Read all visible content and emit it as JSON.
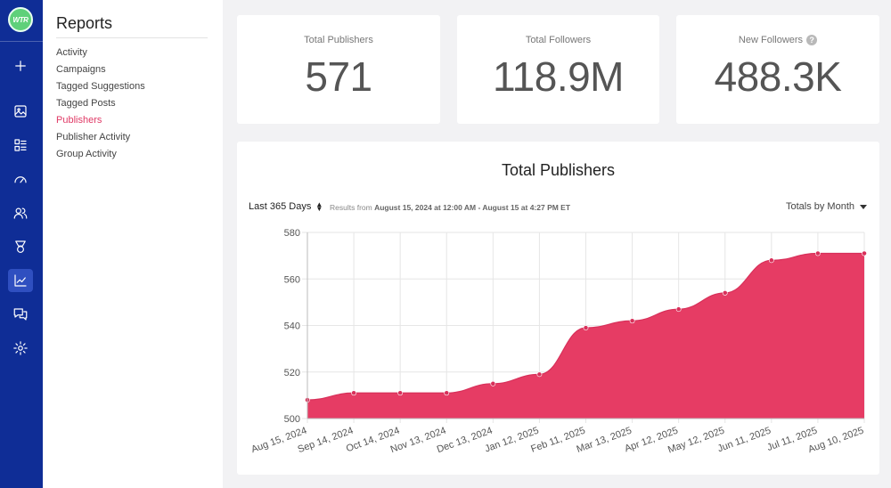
{
  "app": {
    "logo_text": "WTR"
  },
  "rail": {
    "items": [
      {
        "icon": "plus-icon"
      },
      {
        "icon": "image-icon"
      },
      {
        "icon": "layout-list-icon"
      },
      {
        "icon": "gauge-icon"
      },
      {
        "icon": "users-icon"
      },
      {
        "icon": "medal-icon"
      },
      {
        "icon": "line-chart-icon",
        "active": true
      },
      {
        "icon": "chat-icon"
      },
      {
        "icon": "gear-icon"
      }
    ]
  },
  "menu": {
    "title": "Reports",
    "items": [
      {
        "label": "Activity"
      },
      {
        "label": "Campaigns"
      },
      {
        "label": "Tagged Suggestions"
      },
      {
        "label": "Tagged Posts"
      },
      {
        "label": "Publishers",
        "active": true
      },
      {
        "label": "Publisher Activity"
      },
      {
        "label": "Group Activity"
      }
    ]
  },
  "kpis": [
    {
      "label": "Total Publishers",
      "value": "571"
    },
    {
      "label": "Total Followers",
      "value": "118.9M"
    },
    {
      "label": "New Followers",
      "value": "488.3K",
      "help": "?"
    }
  ],
  "panel": {
    "title": "Total Publishers",
    "range_label": "Last 365 Days",
    "results_prefix": "Results from ",
    "results_range": "August 15, 2024 at 12:00 AM - August 15 at 4:27 PM ET",
    "totals_label": "Totals by Month"
  },
  "colors": {
    "accent": "#e03a66",
    "rail": "#0f2d96",
    "area": "#e63c64"
  },
  "chart_data": {
    "type": "area",
    "x": [
      "Aug 15, 2024",
      "Sep 14, 2024",
      "Oct 14, 2024",
      "Nov 13, 2024",
      "Dec 13, 2024",
      "Jan 12, 2025",
      "Feb 11, 2025",
      "Mar 13, 2025",
      "Apr 12, 2025",
      "May 12, 2025",
      "Jun 11, 2025",
      "Jul 11, 2025",
      "Aug 10, 2025"
    ],
    "values": [
      508,
      511,
      511,
      511,
      515,
      519,
      539,
      542,
      547,
      554,
      568,
      571,
      571
    ],
    "ylim": [
      500,
      580
    ],
    "yticks": [
      500,
      520,
      540,
      560,
      580
    ],
    "grid": true
  }
}
